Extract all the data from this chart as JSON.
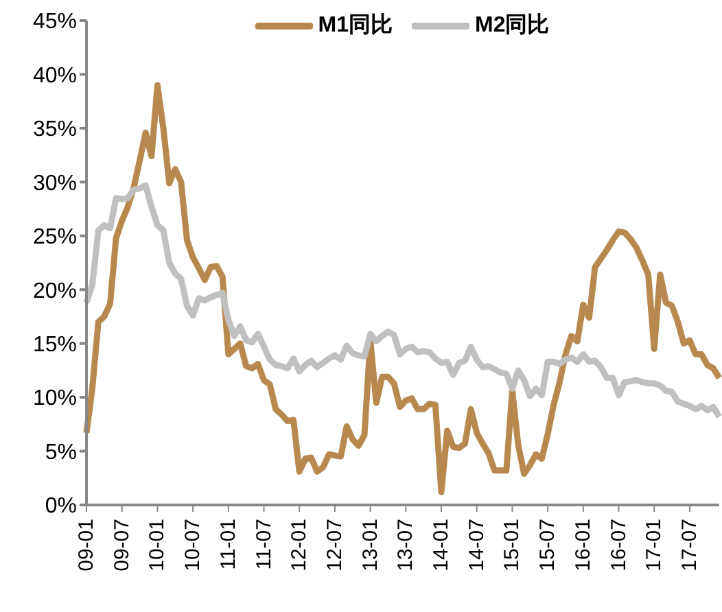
{
  "chart_data": {
    "type": "line",
    "categories": [
      "09-01",
      null,
      null,
      null,
      null,
      null,
      "09-07",
      null,
      null,
      null,
      null,
      null,
      "10-01",
      null,
      null,
      null,
      null,
      null,
      "10-07",
      null,
      null,
      null,
      null,
      null,
      "11-01",
      null,
      null,
      null,
      null,
      null,
      "11-07",
      null,
      null,
      null,
      null,
      null,
      "12-01",
      null,
      null,
      null,
      null,
      null,
      "12-07",
      null,
      null,
      null,
      null,
      null,
      "13-01",
      null,
      null,
      null,
      null,
      null,
      "13-07",
      null,
      null,
      null,
      null,
      null,
      "14-01",
      null,
      null,
      null,
      null,
      null,
      "14-07",
      null,
      null,
      null,
      null,
      null,
      "15-01",
      null,
      null,
      null,
      null,
      null,
      "15-07",
      null,
      null,
      null,
      null,
      null,
      "16-01",
      null,
      null,
      null,
      null,
      null,
      "16-07",
      null,
      null,
      null,
      null,
      null,
      "17-01",
      null,
      null,
      null,
      null,
      null,
      "17-07",
      null,
      null,
      null,
      null,
      null
    ],
    "series": [
      {
        "name": "M1同比",
        "color": "#b8894f",
        "values": [
          6.7,
          10.9,
          17.0,
          17.5,
          18.7,
          24.8,
          26.4,
          27.7,
          29.5,
          32.0,
          34.6,
          32.4,
          39.0,
          35.0,
          29.9,
          31.2,
          30.0,
          24.6,
          23.0,
          22.0,
          20.9,
          22.1,
          22.2,
          21.2,
          14.0,
          14.5,
          15.0,
          12.9,
          12.7,
          13.1,
          11.6,
          11.2,
          8.9,
          8.4,
          7.8,
          7.9,
          3.1,
          4.3,
          4.4,
          3.1,
          3.5,
          4.7,
          4.6,
          4.5,
          7.3,
          6.1,
          5.5,
          6.5,
          15.3,
          9.5,
          11.9,
          11.9,
          11.3,
          9.1,
          9.7,
          9.9,
          8.9,
          8.9,
          9.4,
          9.3,
          1.2,
          6.9,
          5.4,
          5.3,
          5.7,
          8.9,
          6.7,
          5.7,
          4.8,
          3.2,
          3.2,
          3.2,
          10.6,
          5.6,
          2.9,
          3.7,
          4.7,
          4.3,
          6.6,
          9.3,
          11.4,
          14.0,
          15.7,
          15.2,
          18.6,
          17.4,
          22.1,
          22.9,
          23.7,
          24.6,
          25.4,
          25.3,
          24.7,
          23.9,
          22.7,
          21.4,
          14.5,
          21.4,
          18.8,
          18.5,
          17.0,
          15.0,
          15.3,
          14.0,
          14.0,
          13.0,
          12.7,
          11.8
        ]
      },
      {
        "name": "M2同比",
        "color": "#c0c0c0",
        "values": [
          18.8,
          20.5,
          25.5,
          26.0,
          25.7,
          28.5,
          28.4,
          28.5,
          29.3,
          29.4,
          29.7,
          27.7,
          26.0,
          25.5,
          22.5,
          21.5,
          21.0,
          18.5,
          17.6,
          19.2,
          19.0,
          19.3,
          19.5,
          19.7,
          17.2,
          15.7,
          16.6,
          15.3,
          15.1,
          15.9,
          14.7,
          13.5,
          13.0,
          12.9,
          12.7,
          13.6,
          12.4,
          13.0,
          13.4,
          12.8,
          13.2,
          13.6,
          13.9,
          13.5,
          14.8,
          14.1,
          13.9,
          13.8,
          15.9,
          15.2,
          15.7,
          16.1,
          15.8,
          14.0,
          14.5,
          14.7,
          14.2,
          14.3,
          14.2,
          13.6,
          13.2,
          13.3,
          12.1,
          13.2,
          13.4,
          14.7,
          13.5,
          12.8,
          12.9,
          12.6,
          12.3,
          12.2,
          10.8,
          12.5,
          11.6,
          10.1,
          10.8,
          10.2,
          13.3,
          13.3,
          13.1,
          13.5,
          13.7,
          13.3,
          14.0,
          13.3,
          13.4,
          12.8,
          11.8,
          11.8,
          10.2,
          11.4,
          11.5,
          11.6,
          11.4,
          11.3,
          11.3,
          11.1,
          10.6,
          10.5,
          9.6,
          9.4,
          9.2,
          8.9,
          9.2,
          8.8,
          9.1,
          8.2
        ]
      }
    ],
    "ylim": [
      0,
      45
    ],
    "yticks": [
      {
        "value": 0,
        "label": "0%"
      },
      {
        "value": 5,
        "label": "5%"
      },
      {
        "value": 10,
        "label": "10%"
      },
      {
        "value": 15,
        "label": "15%"
      },
      {
        "value": 20,
        "label": "20%"
      },
      {
        "value": 25,
        "label": "25%"
      },
      {
        "value": 30,
        "label": "30%"
      },
      {
        "value": 35,
        "label": "35%"
      },
      {
        "value": 40,
        "label": "40%"
      },
      {
        "value": 45,
        "label": "45%"
      }
    ],
    "grid": false,
    "legend": "top",
    "marker": "none",
    "line_style": "solid"
  }
}
